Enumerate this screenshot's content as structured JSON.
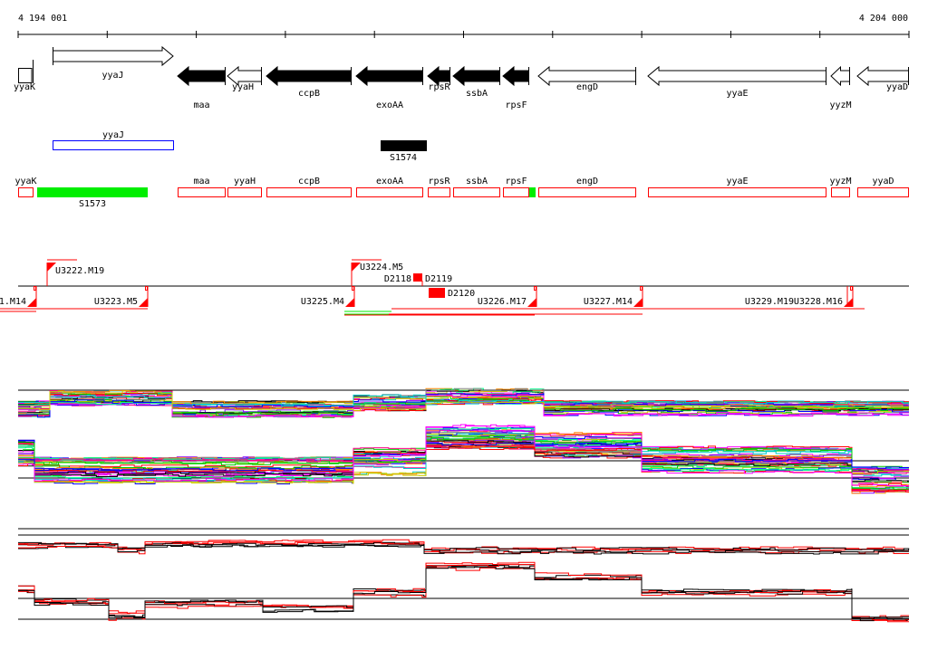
{
  "ruler": {
    "start_label": "4 194 001",
    "end_label": "4 204 000"
  },
  "genes": [
    {
      "name": "yyaK",
      "strand": "box",
      "fill": "#ffffff"
    },
    {
      "name": "yyaJ",
      "strand": "+",
      "fill": "#ffffff"
    },
    {
      "name": "maa",
      "strand": "-",
      "fill": "#000000"
    },
    {
      "name": "yyaH",
      "strand": "-",
      "fill": "#ffffff"
    },
    {
      "name": "ccpB",
      "strand": "-",
      "fill": "#000000"
    },
    {
      "name": "exoAA",
      "strand": "-",
      "fill": "#000000"
    },
    {
      "name": "rpsR",
      "strand": "-",
      "fill": "#000000"
    },
    {
      "name": "ssbA",
      "strand": "-",
      "fill": "#000000"
    },
    {
      "name": "rpsF",
      "strand": "-",
      "fill": "#000000"
    },
    {
      "name": "engD",
      "strand": "-",
      "fill": "#ffffff"
    },
    {
      "name": "yyaE",
      "strand": "-",
      "fill": "#ffffff"
    },
    {
      "name": "yyzM",
      "strand": "-",
      "fill": "#ffffff"
    },
    {
      "name": "yyaD",
      "strand": "-",
      "fill": "#ffffff"
    }
  ],
  "features": [
    {
      "name": "yyaJ",
      "color": "#0000ff"
    },
    {
      "name": "S1574",
      "color": "#000000"
    }
  ],
  "transcripts": {
    "labels": [
      "yyaK",
      "maa",
      "yyaH",
      "ccpB",
      "exoAA",
      "rpsR",
      "ssbA",
      "rpsF",
      "engD",
      "yyaE",
      "yyzM",
      "yyaD"
    ],
    "S1573": "S1573",
    "color": "#ff0000",
    "highlight": "#00ee00"
  },
  "segments": {
    "above": [
      "U3222.M19",
      "U3224.M5",
      "D2118"
    ],
    "below": [
      "1.M14",
      "U3223.M5",
      "U3225.M4",
      "D2120",
      "D2119",
      "U3226.M17",
      "U3227.M14",
      "U3228.M16",
      "U3229.M19"
    ]
  },
  "colors": {
    "accent": "#ff0000",
    "green": "#00ee00"
  }
}
